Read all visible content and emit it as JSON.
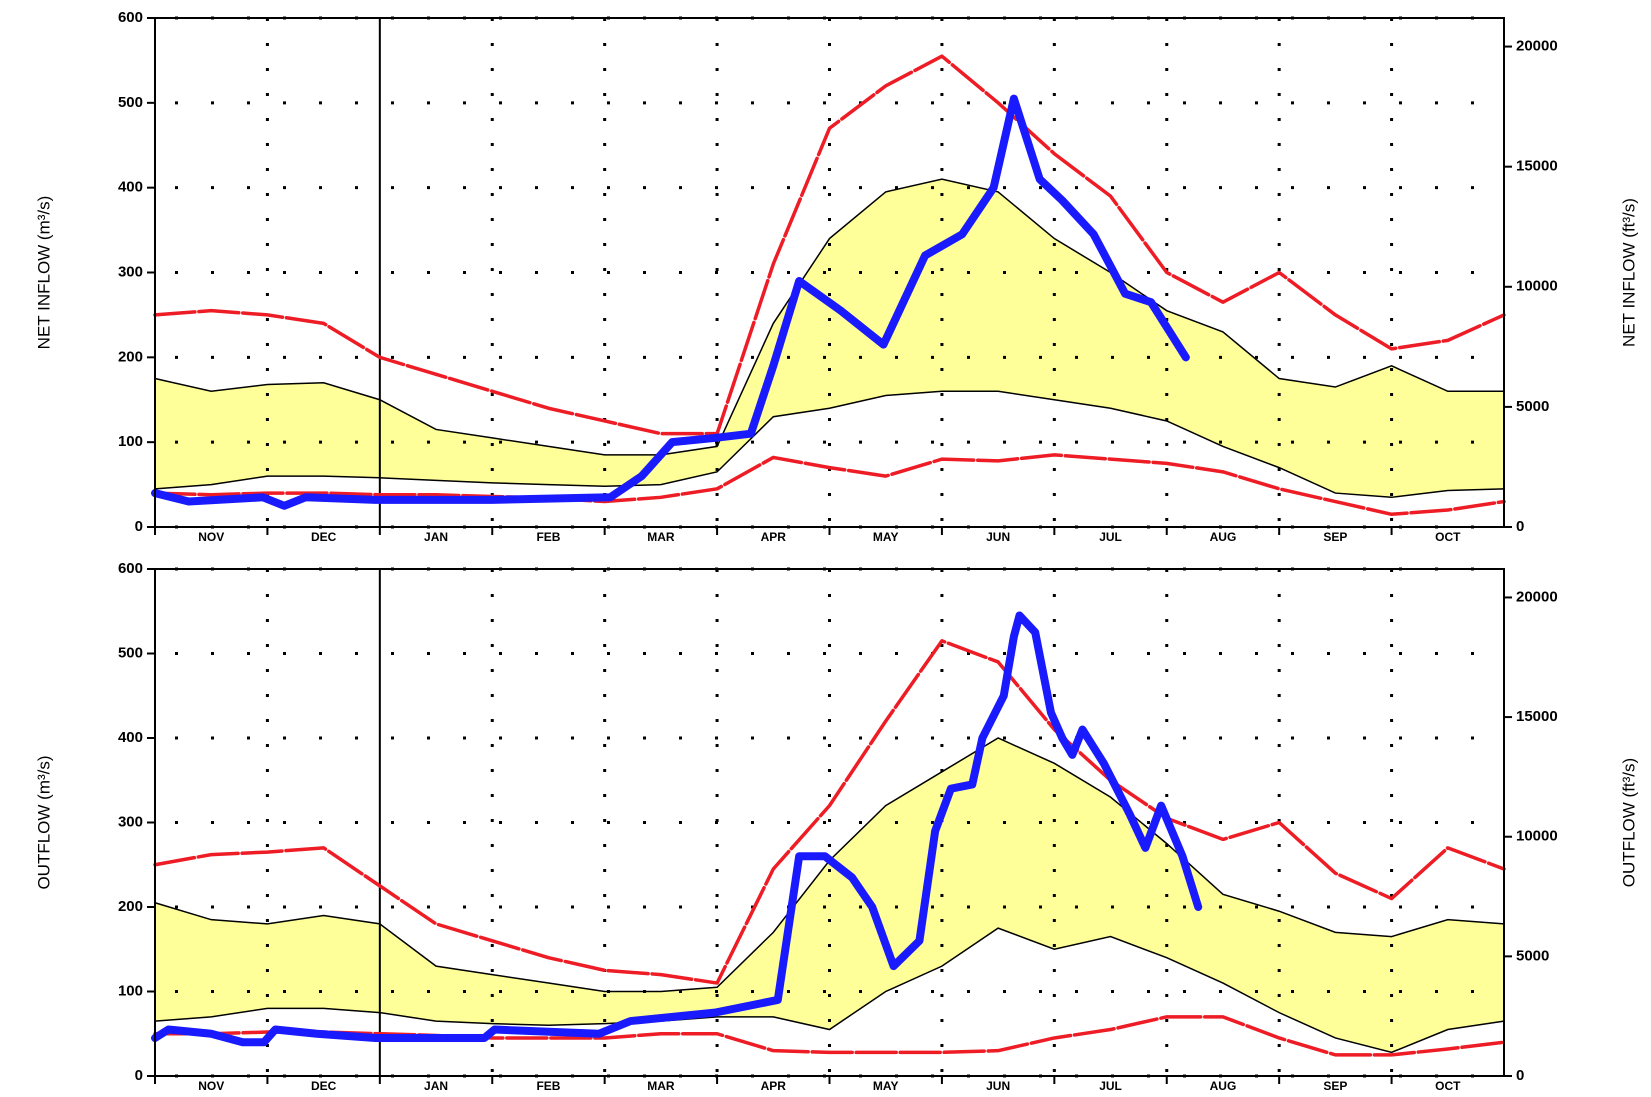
{
  "chart_data": [
    {
      "type": "line",
      "ylabel": "NET INFLOW (m³/s)",
      "y2label": "NET INFLOW (ft³/s)",
      "categories": [
        "NOV",
        "DEC",
        "JAN",
        "FEB",
        "MAR",
        "APR",
        "MAY",
        "JUN",
        "JUL",
        "AUG",
        "SEP",
        "OCT"
      ],
      "xlim": [
        0,
        12
      ],
      "x": [
        0,
        0.5,
        1,
        1.5,
        2,
        2.5,
        3,
        3.5,
        4,
        4.5,
        5,
        5.5,
        6,
        6.5,
        7,
        7.5,
        8,
        8.5,
        9,
        9.5,
        10,
        10.5,
        11,
        11.5,
        12
      ],
      "ylim": [
        0,
        600
      ],
      "yticks": [
        0,
        100,
        200,
        300,
        400,
        500,
        600
      ],
      "y2lim": [
        0,
        21189
      ],
      "y2ticks": [
        0,
        5000,
        10000,
        15000,
        20000
      ],
      "grid": true,
      "band": {
        "fill": "#ffff99",
        "line_color": "#000000",
        "upper": [
          175,
          160,
          168,
          170,
          150,
          115,
          105,
          95,
          85,
          85,
          95,
          240,
          340,
          395,
          410,
          395,
          340,
          300,
          255,
          230,
          175,
          165,
          190,
          160,
          160
        ],
        "lower": [
          45,
          50,
          60,
          60,
          58,
          55,
          52,
          50,
          48,
          50,
          65,
          130,
          140,
          155,
          160,
          160,
          150,
          140,
          125,
          95,
          70,
          40,
          35,
          43,
          45
        ]
      },
      "series": [
        {
          "color": "#ee1c25",
          "values": [
            250,
            255,
            250,
            240,
            200,
            180,
            160,
            140,
            125,
            110,
            110,
            310,
            470,
            520,
            555,
            500,
            440,
            390,
            300,
            265,
            300,
            250,
            210,
            220,
            250
          ]
        },
        {
          "color": "#ee1c25",
          "values": [
            40,
            38,
            40,
            40,
            38,
            38,
            36,
            34,
            30,
            35,
            45,
            82,
            70,
            60,
            80,
            78,
            85,
            80,
            75,
            65,
            45,
            30,
            15,
            20,
            30
          ]
        },
        {
          "color": "#1a1aff",
          "x": [
            0,
            0.3,
            0.96,
            1.15,
            1.34,
            1.96,
            3.0,
            4.05,
            4.33,
            4.6,
            4.98,
            5.3,
            5.5,
            5.73,
            6.1,
            6.48,
            6.85,
            7.18,
            7.46,
            7.64,
            7.87,
            8.07,
            8.35,
            8.63,
            8.86,
            9.17
          ],
          "values": [
            40,
            30,
            35,
            25,
            35,
            32,
            32,
            35,
            60,
            100,
            105,
            110,
            190,
            290,
            255,
            215,
            320,
            345,
            400,
            505,
            410,
            385,
            345,
            275,
            265,
            200
          ]
        }
      ]
    },
    {
      "type": "line",
      "ylabel": "OUTFLOW (m³/s)",
      "y2label": "OUTFLOW (ft³/s)",
      "categories": [
        "NOV",
        "DEC",
        "JAN",
        "FEB",
        "MAR",
        "APR",
        "MAY",
        "JUN",
        "JUL",
        "AUG",
        "SEP",
        "OCT"
      ],
      "xlim": [
        0,
        12
      ],
      "x": [
        0,
        0.5,
        1,
        1.5,
        2,
        2.5,
        3,
        3.5,
        4,
        4.5,
        5,
        5.5,
        6,
        6.5,
        7,
        7.5,
        8,
        8.5,
        9,
        9.5,
        10,
        10.5,
        11,
        11.5,
        12
      ],
      "ylim": [
        0,
        600
      ],
      "yticks": [
        0,
        100,
        200,
        300,
        400,
        500,
        600
      ],
      "y2lim": [
        0,
        21189
      ],
      "y2ticks": [
        0,
        5000,
        10000,
        15000,
        20000
      ],
      "grid": true,
      "band": {
        "fill": "#ffff99",
        "line_color": "#000000",
        "upper": [
          205,
          185,
          180,
          190,
          180,
          130,
          120,
          110,
          100,
          100,
          105,
          170,
          255,
          320,
          360,
          400,
          370,
          330,
          275,
          215,
          195,
          170,
          165,
          185,
          180
        ],
        "lower": [
          65,
          70,
          80,
          80,
          75,
          65,
          62,
          60,
          62,
          65,
          70,
          70,
          55,
          100,
          130,
          175,
          150,
          165,
          140,
          110,
          75,
          45,
          28,
          55,
          65
        ]
      },
      "series": [
        {
          "color": "#ee1c25",
          "values": [
            250,
            262,
            265,
            270,
            225,
            180,
            160,
            140,
            125,
            120,
            110,
            245,
            320,
            420,
            515,
            490,
            410,
            350,
            305,
            280,
            300,
            240,
            210,
            270,
            245
          ]
        },
        {
          "color": "#ee1c25",
          "values": [
            50,
            50,
            52,
            52,
            50,
            48,
            45,
            45,
            45,
            50,
            50,
            30,
            28,
            28,
            28,
            30,
            45,
            55,
            70,
            70,
            45,
            25,
            25,
            32,
            40
          ]
        },
        {
          "color": "#1a1aff",
          "x": [
            0,
            0.12,
            0.5,
            0.78,
            0.97,
            1.07,
            1.44,
            1.96,
            2.93,
            3.02,
            3.95,
            4.23,
            4.98,
            5.54,
            5.73,
            5.96,
            6.2,
            6.38,
            6.57,
            6.8,
            6.94,
            7.08,
            7.27,
            7.36,
            7.55,
            7.64,
            7.69,
            7.83,
            7.97,
            8.07,
            8.16,
            8.25,
            8.44,
            8.67,
            8.81,
            8.95,
            9.14,
            9.28
          ],
          "values": [
            45,
            55,
            50,
            40,
            40,
            55,
            50,
            45,
            45,
            55,
            50,
            65,
            75,
            90,
            260,
            260,
            235,
            200,
            130,
            160,
            290,
            340,
            345,
            400,
            450,
            520,
            545,
            525,
            430,
            400,
            380,
            410,
            370,
            310,
            270,
            320,
            260,
            200
          ]
        }
      ]
    }
  ]
}
